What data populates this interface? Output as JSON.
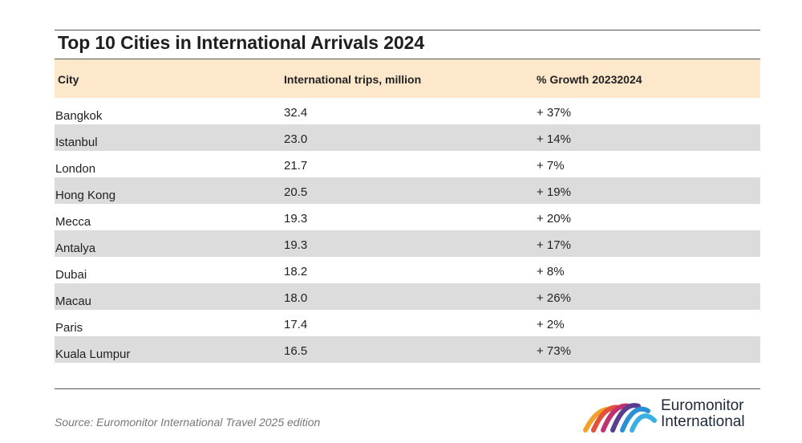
{
  "title": "Top 10 Cities in International Arrivals 2024",
  "chart_data": {
    "type": "table",
    "title": "Top 10 Cities in International Arrivals 2024",
    "columns": [
      "City",
      "International trips, million",
      "% Growth 20232024"
    ],
    "rows": [
      {
        "city": "Bangkok",
        "trips": "32.4",
        "growth": "+ 37%"
      },
      {
        "city": "Istanbul",
        "trips": "23.0",
        "growth": "+ 14%"
      },
      {
        "city": "London",
        "trips": "21.7",
        "growth": "+ 7%"
      },
      {
        "city": "Hong Kong",
        "trips": "20.5",
        "growth": "+ 19%"
      },
      {
        "city": "Mecca",
        "trips": "19.3",
        "growth": "+ 20%"
      },
      {
        "city": "Antalya",
        "trips": "19.3",
        "growth": "+ 17%"
      },
      {
        "city": "Dubai",
        "trips": "18.2",
        "growth": "+ 8%"
      },
      {
        "city": "Macau",
        "trips": "18.0",
        "growth": "+ 26%"
      },
      {
        "city": "Paris",
        "trips": "17.4",
        "growth": "+ 2%"
      },
      {
        "city": "Kuala Lumpur",
        "trips": "16.5",
        "growth": "+ 73%"
      }
    ]
  },
  "source": "Source: Euromonitor International Travel 2025 edition",
  "logo": {
    "line1": "Euromonitor",
    "line2": "International",
    "icon": "arc-bridge-logo-icon",
    "colors": [
      "#f2a12b",
      "#e5503a",
      "#c2306f",
      "#5a3d8f",
      "#2b8fd6",
      "#3ab0e2"
    ]
  },
  "colors": {
    "header_bg": "#fde8cc",
    "stripe_bg": "#dcdcdc",
    "rule": "#555555"
  }
}
